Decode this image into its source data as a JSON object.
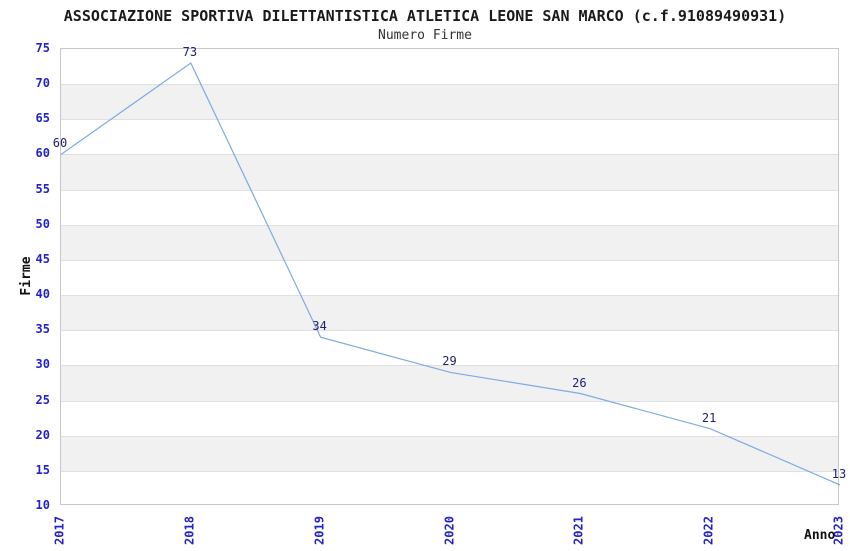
{
  "chart_data": {
    "type": "line",
    "title": "ASSOCIAZIONE SPORTIVA DILETTANTISTICA ATLETICA LEONE SAN MARCO (c.f.91089490931)",
    "subtitle": "Numero Firme",
    "xlabel": "Anno",
    "ylabel": "Firme",
    "categories": [
      "2017",
      "2018",
      "2019",
      "2020",
      "2021",
      "2022",
      "2023"
    ],
    "series": [
      {
        "name": "Numero Firme",
        "values": [
          60,
          73,
          34,
          29,
          26,
          21,
          13
        ]
      }
    ],
    "point_labels": [
      "60",
      "73",
      "34",
      "29",
      "26",
      "21",
      "13"
    ],
    "ylim": [
      10,
      75
    ],
    "ytick_step": 5,
    "yticks": [
      "75",
      "70",
      "65",
      "60",
      "55",
      "50",
      "45",
      "40",
      "35",
      "30",
      "25",
      "20",
      "15",
      "10"
    ],
    "grid": "horizontal gridlines every 5 units",
    "banding": "alternating white/gray horizontal bands of 5 units, top band white",
    "legend": "none",
    "colors": {
      "line": "#7dabe3",
      "tick_label": "#2222cc",
      "point_label": "#202070",
      "band": "#f1f1f1",
      "gridline": "#e0e0e0",
      "plot_border": "#c8c8c8",
      "title": "#1a1a1a",
      "subtitle": "#333333",
      "axis_title": "#111111"
    }
  }
}
